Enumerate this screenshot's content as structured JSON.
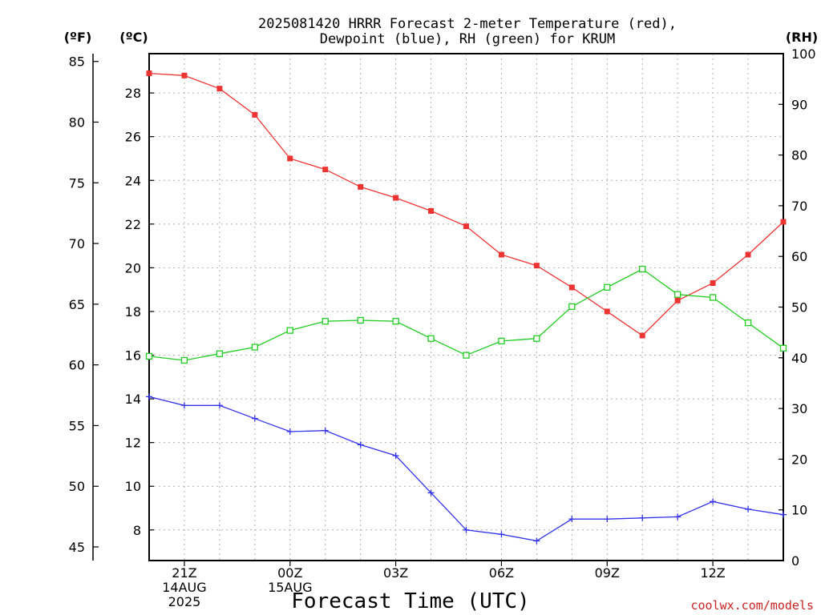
{
  "chart_data": {
    "type": "line",
    "title_lines": [
      "2025081420 HRRR Forecast 2-meter Temperature (red),",
      "Dewpoint (blue), RH (green) for KRUM"
    ],
    "xlabel": "Forecast Time (UTC)",
    "axis_unit_labels": {
      "fahrenheit": "(ºF)",
      "celsius": "(ºC)",
      "rh": "(RH)"
    },
    "x": [
      0,
      1,
      2,
      3,
      4,
      5,
      6,
      7,
      8,
      9,
      10,
      11,
      12,
      13,
      14,
      15,
      16,
      17,
      18
    ],
    "xlim": [
      0,
      18
    ],
    "x_ticks": [
      {
        "x": 1,
        "lines": [
          "21Z",
          "14AUG",
          "2025"
        ]
      },
      {
        "x": 4,
        "lines": [
          "00Z",
          "15AUG"
        ]
      },
      {
        "x": 7,
        "lines": [
          "03Z"
        ]
      },
      {
        "x": 10,
        "lines": [
          "06Z"
        ]
      },
      {
        "x": 13,
        "lines": [
          "09Z"
        ]
      },
      {
        "x": 16,
        "lines": [
          "12Z"
        ]
      }
    ],
    "celsius_axis": {
      "ylim": [
        6.6,
        29.8
      ],
      "ticks": [
        8,
        10,
        12,
        14,
        16,
        18,
        20,
        22,
        24,
        26,
        28
      ]
    },
    "fahrenheit_axis": {
      "ylim": [
        43.88,
        85.64
      ],
      "ticks": [
        45,
        50,
        55,
        60,
        65,
        70,
        75,
        80,
        85
      ]
    },
    "rh_axis": {
      "ylim": [
        0,
        100
      ],
      "ticks": [
        0,
        10,
        20,
        30,
        40,
        50,
        60,
        70,
        80,
        90,
        100
      ]
    },
    "grid": true,
    "series": [
      {
        "name": "Temperature",
        "axis": "celsius",
        "color": "#ee3333",
        "marker": "filled-square",
        "values": [
          28.9,
          28.8,
          28.2,
          27.0,
          25.0,
          24.5,
          23.7,
          23.2,
          22.6,
          21.9,
          20.6,
          20.1,
          19.1,
          18.0,
          16.9,
          18.5,
          19.3,
          20.6,
          22.1
        ]
      },
      {
        "name": "Dewpoint",
        "axis": "celsius",
        "color": "#3333ee",
        "marker": "plus",
        "values": [
          14.1,
          13.7,
          13.7,
          13.1,
          12.5,
          12.55,
          11.9,
          11.4,
          9.7,
          8.0,
          7.8,
          7.5,
          8.5,
          8.5,
          8.55,
          8.6,
          9.3,
          8.95,
          8.7
        ]
      },
      {
        "name": "RH",
        "axis": "rh",
        "color": "#22cc22",
        "marker": "open-square",
        "values": [
          40.3,
          39.5,
          40.8,
          42.1,
          45.4,
          47.2,
          47.4,
          47.2,
          43.8,
          40.5,
          43.3,
          43.8,
          50.1,
          53.9,
          57.5,
          52.5,
          51.9,
          46.9,
          41.9
        ]
      }
    ],
    "credit": "coolwx.com/models"
  }
}
